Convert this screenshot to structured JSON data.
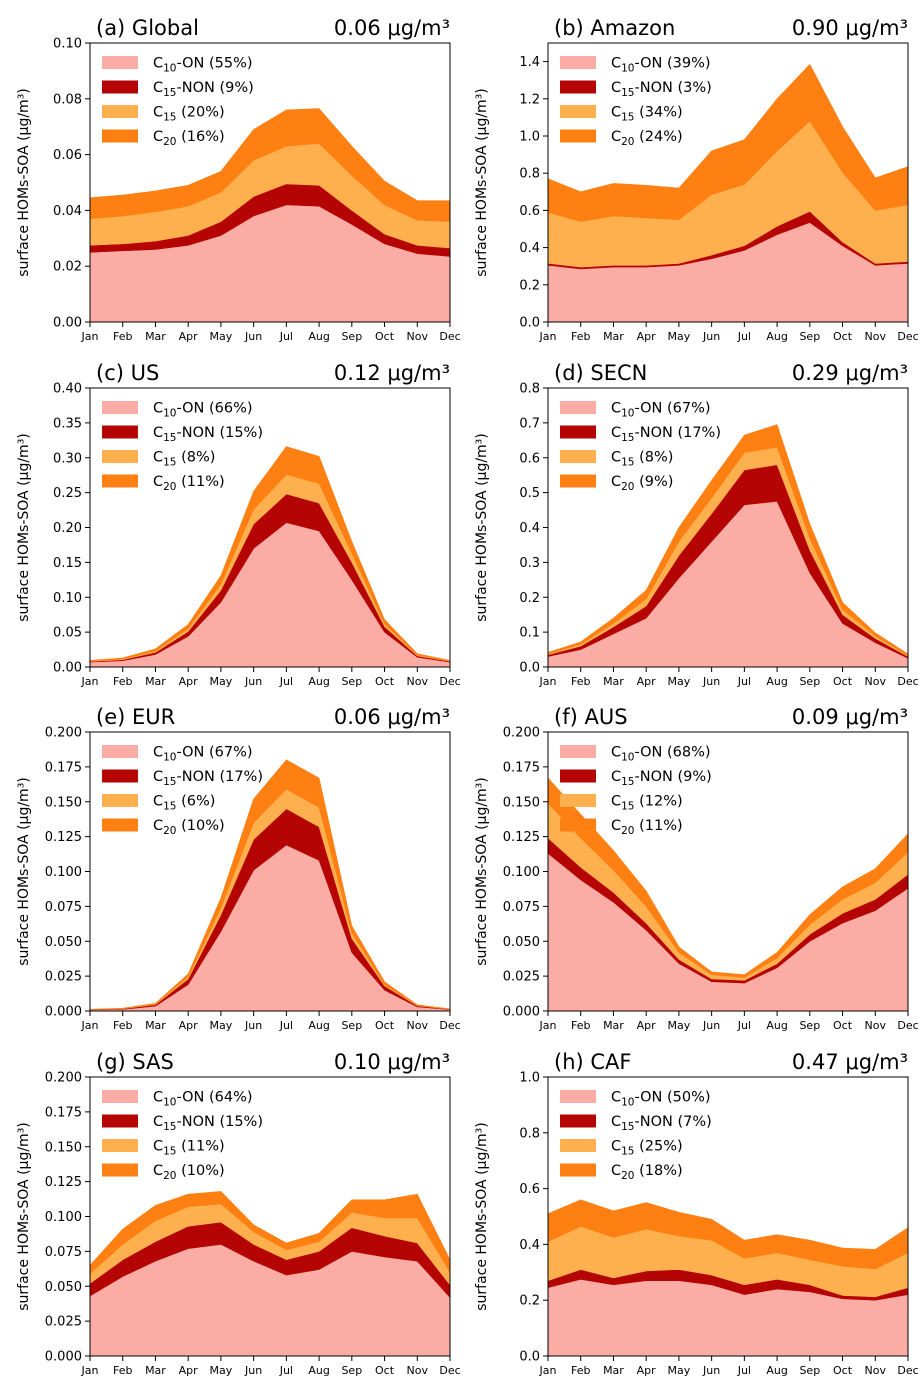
{
  "colors": {
    "c10_on": "#fbada5",
    "c15_non": "#b40404",
    "c15": "#feb04e",
    "c20": "#fe7f12"
  },
  "chart_data": [
    {
      "type": "area",
      "stacked": true,
      "title": "(a) Global",
      "total": "0.06 μg/m³",
      "ylabel": "surface HOMs-SOA (μg/m³)",
      "ylim": [
        0,
        0.1
      ],
      "yticks": [
        "0.00",
        "0.02",
        "0.04",
        "0.06",
        "0.08",
        "0.10"
      ],
      "categories": [
        "Jan",
        "Feb",
        "Mar",
        "Apr",
        "May",
        "Jun",
        "Jul",
        "Aug",
        "Sep",
        "Oct",
        "Nov",
        "Dec"
      ],
      "legend_position": "top-left",
      "series": [
        {
          "name": "C10-ON",
          "base": "C",
          "sub": "10",
          "suffix": "-ON",
          "pct": "(55%)",
          "color_key": "c10_on",
          "values": [
            0.025,
            0.0255,
            0.026,
            0.0275,
            0.031,
            0.038,
            0.042,
            0.0415,
            0.035,
            0.028,
            0.0245,
            0.0235
          ]
        },
        {
          "name": "C15-NON",
          "base": "C",
          "sub": "15",
          "suffix": "-NON",
          "pct": "(9%)",
          "color_key": "c15_non",
          "values": [
            0.0025,
            0.0025,
            0.003,
            0.0035,
            0.005,
            0.007,
            0.0075,
            0.0075,
            0.005,
            0.0035,
            0.003,
            0.003
          ]
        },
        {
          "name": "C15",
          "base": "C",
          "sub": "15",
          "suffix": "",
          "pct": "(20%)",
          "color_key": "c15",
          "values": [
            0.0095,
            0.01,
            0.0105,
            0.0105,
            0.0105,
            0.013,
            0.0135,
            0.015,
            0.0125,
            0.0105,
            0.009,
            0.0095
          ]
        },
        {
          "name": "C20",
          "base": "C",
          "sub": "20",
          "suffix": "",
          "pct": "(16%)",
          "color_key": "c20",
          "values": [
            0.0075,
            0.0075,
            0.0075,
            0.0075,
            0.0075,
            0.011,
            0.013,
            0.0125,
            0.0105,
            0.0085,
            0.007,
            0.0075
          ]
        }
      ]
    },
    {
      "type": "area",
      "stacked": true,
      "title": "(b) Amazon",
      "total": "0.90 μg/m³",
      "ylabel": "surface HOMs-SOA (μg/m³)",
      "ylim": [
        0,
        1.5
      ],
      "yticks": [
        "0.0",
        "0.2",
        "0.4",
        "0.6",
        "0.8",
        "1.0",
        "1.2",
        "1.4"
      ],
      "ytick_values": [
        0,
        0.2,
        0.4,
        0.6,
        0.8,
        1.0,
        1.2,
        1.4
      ],
      "categories": [
        "Jan",
        "Feb",
        "Mar",
        "Apr",
        "May",
        "Jun",
        "Jul",
        "Aug",
        "Sep",
        "Oct",
        "Nov",
        "Dec"
      ],
      "legend_position": "top-left",
      "series": [
        {
          "name": "C10-ON",
          "base": "C",
          "sub": "10",
          "suffix": "-ON",
          "pct": "(39%)",
          "color_key": "c10_on",
          "values": [
            0.305,
            0.285,
            0.295,
            0.295,
            0.305,
            0.34,
            0.385,
            0.47,
            0.535,
            0.41,
            0.305,
            0.315
          ]
        },
        {
          "name": "C15-NON",
          "base": "C",
          "sub": "15",
          "suffix": "-NON",
          "pct": "(3%)",
          "color_key": "c15_non",
          "values": [
            0.01,
            0.01,
            0.01,
            0.01,
            0.01,
            0.02,
            0.025,
            0.045,
            0.06,
            0.02,
            0.01,
            0.01
          ]
        },
        {
          "name": "C15",
          "base": "C",
          "sub": "15",
          "suffix": "",
          "pct": "(34%)",
          "color_key": "c15",
          "values": [
            0.275,
            0.245,
            0.265,
            0.255,
            0.235,
            0.325,
            0.33,
            0.405,
            0.485,
            0.375,
            0.285,
            0.305
          ]
        },
        {
          "name": "C20",
          "base": "C",
          "sub": "20",
          "suffix": "",
          "pct": "(24%)",
          "color_key": "c20",
          "values": [
            0.18,
            0.16,
            0.175,
            0.175,
            0.17,
            0.235,
            0.24,
            0.28,
            0.305,
            0.245,
            0.175,
            0.205
          ]
        }
      ]
    },
    {
      "type": "area",
      "stacked": true,
      "title": "(c) US",
      "total": "0.12 μg/m³",
      "ylabel": "surface HOMs-SOA (μg/m³)",
      "ylim": [
        0,
        0.4
      ],
      "yticks": [
        "0.00",
        "0.05",
        "0.10",
        "0.15",
        "0.20",
        "0.25",
        "0.30",
        "0.35",
        "0.40"
      ],
      "categories": [
        "Jan",
        "Feb",
        "Mar",
        "Apr",
        "May",
        "Jun",
        "Jul",
        "Aug",
        "Sep",
        "Oct",
        "Nov",
        "Dec"
      ],
      "legend_position": "top-left",
      "series": [
        {
          "name": "C10-ON",
          "base": "C",
          "sub": "10",
          "suffix": "-ON",
          "pct": "(66%)",
          "color_key": "c10_on",
          "values": [
            0.007,
            0.009,
            0.018,
            0.044,
            0.093,
            0.17,
            0.207,
            0.195,
            0.125,
            0.05,
            0.014,
            0.007
          ]
        },
        {
          "name": "C15-NON",
          "base": "C",
          "sub": "15",
          "suffix": "-NON",
          "pct": "(15%)",
          "color_key": "c15_non",
          "values": [
            0.001,
            0.0015,
            0.003,
            0.007,
            0.017,
            0.035,
            0.041,
            0.04,
            0.025,
            0.008,
            0.002,
            0.001
          ]
        },
        {
          "name": "C15",
          "base": "C",
          "sub": "15",
          "suffix": "",
          "pct": "(8%)",
          "color_key": "c15",
          "values": [
            0.0005,
            0.001,
            0.002,
            0.004,
            0.009,
            0.021,
            0.028,
            0.028,
            0.013,
            0.004,
            0.001,
            0.0005
          ]
        },
        {
          "name": "C20",
          "base": "C",
          "sub": "20",
          "suffix": "",
          "pct": "(11%)",
          "color_key": "c20",
          "values": [
            0.001,
            0.0015,
            0.003,
            0.006,
            0.012,
            0.026,
            0.04,
            0.039,
            0.017,
            0.006,
            0.002,
            0.001
          ]
        }
      ]
    },
    {
      "type": "area",
      "stacked": true,
      "title": "(d) SECN",
      "total": "0.29 μg/m³",
      "ylabel": "surface HOMs-SOA (μg/m³)",
      "ylim": [
        0,
        0.8
      ],
      "yticks": [
        "0.0",
        "0.1",
        "0.2",
        "0.3",
        "0.4",
        "0.5",
        "0.6",
        "0.7",
        "0.8"
      ],
      "categories": [
        "Jan",
        "Feb",
        "Mar",
        "Apr",
        "May",
        "Jun",
        "Jul",
        "Aug",
        "Sep",
        "Oct",
        "Nov",
        "Dec"
      ],
      "legend_position": "top-left",
      "series": [
        {
          "name": "C10-ON",
          "base": "C",
          "sub": "10",
          "suffix": "-ON",
          "pct": "(67%)",
          "color_key": "c10_on",
          "values": [
            0.03,
            0.05,
            0.095,
            0.14,
            0.255,
            0.36,
            0.465,
            0.475,
            0.27,
            0.125,
            0.07,
            0.025
          ]
        },
        {
          "name": "C15-NON",
          "base": "C",
          "sub": "15",
          "suffix": "-NON",
          "pct": "(17%)",
          "color_key": "c15_non",
          "values": [
            0.005,
            0.01,
            0.02,
            0.035,
            0.065,
            0.08,
            0.1,
            0.105,
            0.065,
            0.025,
            0.012,
            0.005
          ]
        },
        {
          "name": "C15",
          "base": "C",
          "sub": "15",
          "suffix": "",
          "pct": "(8%)",
          "color_key": "c15",
          "values": [
            0.003,
            0.005,
            0.01,
            0.02,
            0.04,
            0.045,
            0.05,
            0.05,
            0.035,
            0.015,
            0.007,
            0.003
          ]
        },
        {
          "name": "C20",
          "base": "C",
          "sub": "20",
          "suffix": "",
          "pct": "(9%)",
          "color_key": "c20",
          "values": [
            0.004,
            0.007,
            0.015,
            0.025,
            0.04,
            0.05,
            0.05,
            0.065,
            0.04,
            0.02,
            0.009,
            0.004
          ]
        }
      ]
    },
    {
      "type": "area",
      "stacked": true,
      "title": "(e) EUR",
      "total": "0.06 μg/m³",
      "ylabel": "surface HOMs-SOA (μg/m³)",
      "ylim": [
        0,
        0.2
      ],
      "yticks": [
        "0.000",
        "0.025",
        "0.050",
        "0.075",
        "0.100",
        "0.125",
        "0.150",
        "0.175",
        "0.200"
      ],
      "categories": [
        "Jan",
        "Feb",
        "Mar",
        "Apr",
        "May",
        "Jun",
        "Jul",
        "Aug",
        "Sep",
        "Oct",
        "Nov",
        "Dec"
      ],
      "legend_position": "top-left",
      "series": [
        {
          "name": "C10-ON",
          "base": "C",
          "sub": "10",
          "suffix": "-ON",
          "pct": "(67%)",
          "color_key": "c10_on",
          "values": [
            0.0008,
            0.0012,
            0.0035,
            0.019,
            0.057,
            0.101,
            0.119,
            0.108,
            0.042,
            0.015,
            0.003,
            0.001
          ]
        },
        {
          "name": "C15-NON",
          "base": "C",
          "sub": "15",
          "suffix": "-NON",
          "pct": "(17%)",
          "color_key": "c15_non",
          "values": [
            0.0002,
            0.0004,
            0.001,
            0.004,
            0.012,
            0.022,
            0.026,
            0.024,
            0.01,
            0.003,
            0.0007,
            0.0003
          ]
        },
        {
          "name": "C15",
          "base": "C",
          "sub": "15",
          "suffix": "",
          "pct": "(6%)",
          "color_key": "c15",
          "values": [
            0.0001,
            0.0002,
            0.0004,
            0.0015,
            0.005,
            0.012,
            0.014,
            0.014,
            0.004,
            0.001,
            0.0003,
            0.0001
          ]
        },
        {
          "name": "C20",
          "base": "C",
          "sub": "20",
          "suffix": "",
          "pct": "(10%)",
          "color_key": "c20",
          "values": [
            0.0001,
            0.0002,
            0.0006,
            0.002,
            0.007,
            0.017,
            0.021,
            0.021,
            0.005,
            0.002,
            0.0004,
            0.0001
          ]
        }
      ]
    },
    {
      "type": "area",
      "stacked": true,
      "title": "(f) AUS",
      "total": "0.09 μg/m³",
      "ylabel": "surface HOMs-SOA (μg/m³)",
      "ylim": [
        0,
        0.2
      ],
      "yticks": [
        "0.000",
        "0.025",
        "0.050",
        "0.075",
        "0.100",
        "0.125",
        "0.150",
        "0.175",
        "0.200"
      ],
      "categories": [
        "Jan",
        "Feb",
        "Mar",
        "Apr",
        "May",
        "Jun",
        "Jul",
        "Aug",
        "Sep",
        "Oct",
        "Nov",
        "Dec"
      ],
      "legend_position": "top-left",
      "series": [
        {
          "name": "C10-ON",
          "base": "C",
          "sub": "10",
          "suffix": "-ON",
          "pct": "(68%)",
          "color_key": "c10_on",
          "values": [
            0.113,
            0.094,
            0.078,
            0.058,
            0.034,
            0.021,
            0.02,
            0.031,
            0.05,
            0.063,
            0.072,
            0.088
          ]
        },
        {
          "name": "C15-NON",
          "base": "C",
          "sub": "15",
          "suffix": "-NON",
          "pct": "(9%)",
          "color_key": "c15_non",
          "values": [
            0.011,
            0.009,
            0.007,
            0.005,
            0.003,
            0.002,
            0.002,
            0.003,
            0.005,
            0.007,
            0.008,
            0.01
          ]
        },
        {
          "name": "C15",
          "base": "C",
          "sub": "15",
          "suffix": "",
          "pct": "(12%)",
          "color_key": "c15",
          "values": [
            0.025,
            0.021,
            0.016,
            0.012,
            0.005,
            0.003,
            0.002,
            0.004,
            0.007,
            0.01,
            0.012,
            0.016
          ]
        },
        {
          "name": "C20",
          "base": "C",
          "sub": "20",
          "suffix": "",
          "pct": "(11%)",
          "color_key": "c20",
          "values": [
            0.018,
            0.017,
            0.014,
            0.011,
            0.004,
            0.002,
            0.002,
            0.004,
            0.007,
            0.009,
            0.01,
            0.013
          ]
        }
      ]
    },
    {
      "type": "area",
      "stacked": true,
      "title": "(g) SAS",
      "total": "0.10 μg/m³",
      "ylabel": "surface HOMs-SOA (μg/m³)",
      "ylim": [
        0,
        0.2
      ],
      "yticks": [
        "0.000",
        "0.025",
        "0.050",
        "0.075",
        "0.100",
        "0.125",
        "0.150",
        "0.175",
        "0.200"
      ],
      "categories": [
        "Jan",
        "Feb",
        "Mar",
        "Apr",
        "May",
        "Jun",
        "Jul",
        "Aug",
        "Sep",
        "Oct",
        "Nov",
        "Dec"
      ],
      "legend_position": "top-left",
      "series": [
        {
          "name": "C10-ON",
          "base": "C",
          "sub": "10",
          "suffix": "-ON",
          "pct": "(64%)",
          "color_key": "c10_on",
          "values": [
            0.043,
            0.057,
            0.068,
            0.077,
            0.08,
            0.068,
            0.058,
            0.062,
            0.075,
            0.071,
            0.068,
            0.042
          ]
        },
        {
          "name": "C15-NON",
          "base": "C",
          "sub": "15",
          "suffix": "-NON",
          "pct": "(15%)",
          "color_key": "c15_non",
          "values": [
            0.009,
            0.012,
            0.014,
            0.016,
            0.016,
            0.012,
            0.011,
            0.013,
            0.017,
            0.015,
            0.013,
            0.009
          ]
        },
        {
          "name": "C15",
          "base": "C",
          "sub": "15",
          "suffix": "",
          "pct": "(11%)",
          "color_key": "c15",
          "values": [
            0.007,
            0.011,
            0.015,
            0.014,
            0.013,
            0.009,
            0.007,
            0.007,
            0.011,
            0.013,
            0.018,
            0.009
          ]
        },
        {
          "name": "C20",
          "base": "C",
          "sub": "20",
          "suffix": "",
          "pct": "(10%)",
          "color_key": "c20",
          "values": [
            0.006,
            0.011,
            0.011,
            0.009,
            0.009,
            0.005,
            0.005,
            0.006,
            0.009,
            0.013,
            0.017,
            0.009
          ]
        }
      ]
    },
    {
      "type": "area",
      "stacked": true,
      "title": "(h) CAF",
      "total": "0.47 μg/m³",
      "ylabel": "surface HOMs-SOA (μg/m³)",
      "ylim": [
        0,
        1.0
      ],
      "yticks": [
        "0.0",
        "0.2",
        "0.4",
        "0.6",
        "0.8",
        "1.0"
      ],
      "categories": [
        "Jan",
        "Feb",
        "Mar",
        "Apr",
        "May",
        "Jun",
        "Jul",
        "Aug",
        "Sep",
        "Oct",
        "Nov",
        "Dec"
      ],
      "legend_position": "top-left",
      "series": [
        {
          "name": "C10-ON",
          "base": "C",
          "sub": "10",
          "suffix": "-ON",
          "pct": "(50%)",
          "color_key": "c10_on",
          "values": [
            0.245,
            0.275,
            0.255,
            0.27,
            0.27,
            0.255,
            0.22,
            0.24,
            0.23,
            0.205,
            0.2,
            0.22
          ]
        },
        {
          "name": "C15-NON",
          "base": "C",
          "sub": "15",
          "suffix": "-NON",
          "pct": "(7%)",
          "color_key": "c15_non",
          "values": [
            0.025,
            0.035,
            0.025,
            0.035,
            0.04,
            0.035,
            0.035,
            0.035,
            0.025,
            0.012,
            0.012,
            0.025
          ]
        },
        {
          "name": "C15",
          "base": "C",
          "sub": "15",
          "suffix": "",
          "pct": "(25%)",
          "color_key": "c15",
          "values": [
            0.14,
            0.155,
            0.145,
            0.15,
            0.12,
            0.125,
            0.095,
            0.095,
            0.09,
            0.105,
            0.1,
            0.125
          ]
        },
        {
          "name": "C20",
          "base": "C",
          "sub": "20",
          "suffix": "",
          "pct": "(18%)",
          "color_key": "c20",
          "values": [
            0.1,
            0.095,
            0.095,
            0.095,
            0.085,
            0.075,
            0.065,
            0.065,
            0.07,
            0.065,
            0.07,
            0.09
          ]
        }
      ]
    }
  ]
}
